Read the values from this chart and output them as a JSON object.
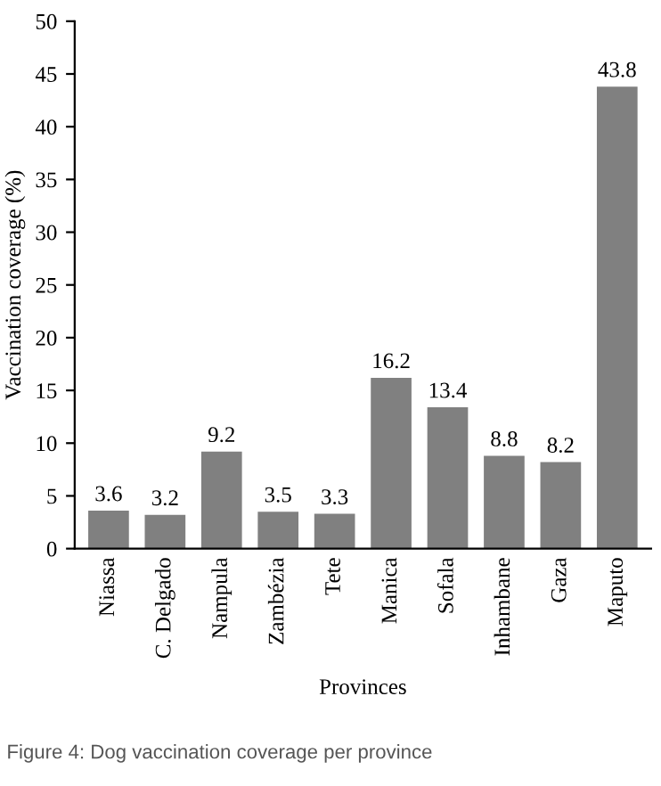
{
  "chart_data": {
    "type": "bar",
    "xlabel": "Provinces",
    "ylabel": "Vaccination coverage (%)",
    "categories": [
      "Niassa",
      "C. Delgado",
      "Nampula",
      "Zambézia",
      "Tete",
      "Manica",
      "Sofala",
      "Inhambane",
      "Gaza",
      "Maputo"
    ],
    "values": [
      3.6,
      3.2,
      9.2,
      3.5,
      3.3,
      16.2,
      13.4,
      8.8,
      8.2,
      43.8
    ],
    "color": "#808080",
    "ylim": [
      0,
      50
    ],
    "yticks": [
      0,
      5,
      10,
      15,
      20,
      25,
      30,
      35,
      40,
      45,
      50
    ],
    "data_labels": true,
    "grid": false,
    "annotations": [
      "Figure 4: Dog vaccination coverage per province"
    ]
  }
}
